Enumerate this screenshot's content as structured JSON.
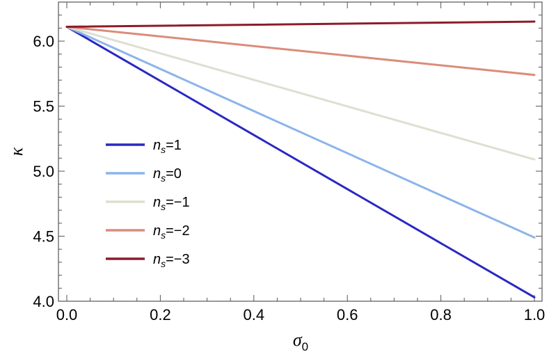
{
  "chart_data": {
    "type": "line",
    "title": "",
    "xlabel": "σ",
    "xlabel_subscript": "0",
    "ylabel": "κ",
    "xlim": [
      0.0,
      1.0
    ],
    "ylim": [
      4.0,
      6.3
    ],
    "xticks": [
      0.0,
      0.2,
      0.4,
      0.6,
      0.8,
      1.0
    ],
    "xtick_labels": [
      "0.0",
      "0.2",
      "0.4",
      "0.6",
      "0.8",
      "1.0"
    ],
    "yticks": [
      4.0,
      4.5,
      5.0,
      5.5,
      6.0
    ],
    "ytick_labels": [
      "4.0",
      "4.5",
      "5.0",
      "5.5",
      "6.0"
    ],
    "grid": false,
    "legend_position": "left",
    "x": [
      0.0,
      1.0
    ],
    "series": [
      {
        "symbol": "n",
        "subscript": "s",
        "suffix": "=1",
        "color": "#2a28c2",
        "values": [
          6.11,
          4.03
        ]
      },
      {
        "symbol": "n",
        "subscript": "s",
        "suffix": "=0",
        "color": "#8cb4ea",
        "values": [
          6.11,
          4.49
        ]
      },
      {
        "symbol": "n",
        "subscript": "s",
        "suffix": "=−1",
        "color": "#dddfd0",
        "values": [
          6.11,
          5.09
        ]
      },
      {
        "symbol": "n",
        "subscript": "s",
        "suffix": "=−2",
        "color": "#db8c7a",
        "values": [
          6.11,
          5.74
        ]
      },
      {
        "symbol": "n",
        "subscript": "s",
        "suffix": "=−3",
        "color": "#8b1c2a",
        "values": [
          6.11,
          6.15
        ]
      }
    ]
  }
}
